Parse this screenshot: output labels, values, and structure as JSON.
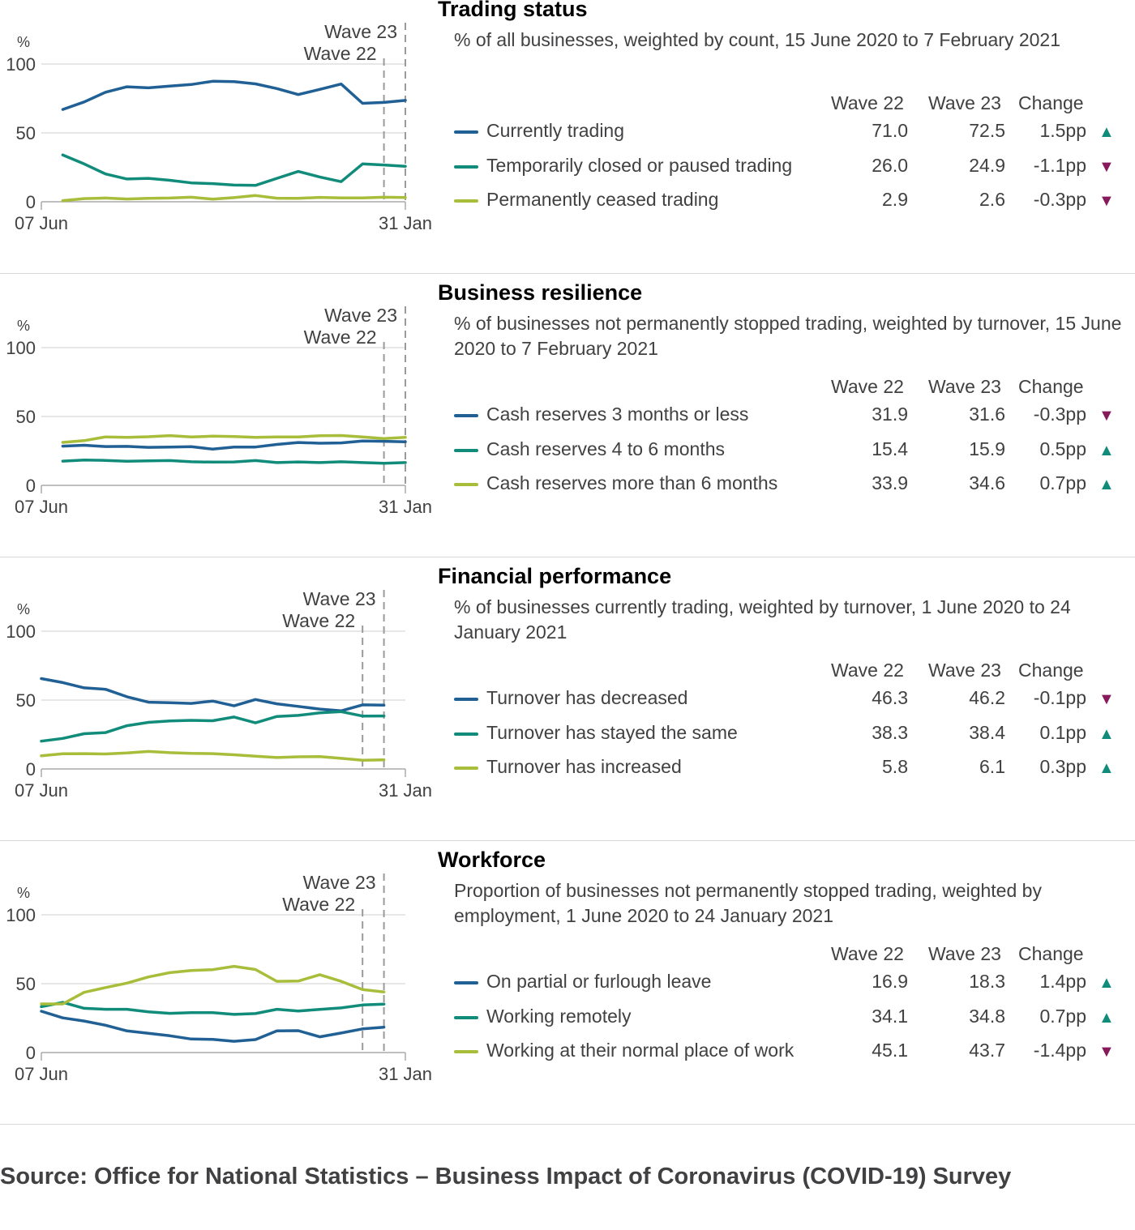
{
  "colors": {
    "blue": "#206095",
    "teal": "#118c7b",
    "lime": "#a8bd3a",
    "up": "#118c7b",
    "down": "#871a5b",
    "grey": "#707070"
  },
  "panels": [
    {
      "title": "Trading status",
      "subtitle": "% of all businesses, weighted by count, 15 June 2020 to 7 February 2021",
      "headers": {
        "w22": "Wave 22",
        "w23": "Wave 23",
        "change": "Change"
      },
      "rows": [
        {
          "label": "Currently trading",
          "w22": "71.0",
          "w23": "72.5",
          "change": "1.5pp",
          "dir": "up",
          "arrow": "▲",
          "color": "#206095"
        },
        {
          "label": "Temporarily closed or paused trading",
          "w22": "26.0",
          "w23": "24.9",
          "change": "-1.1pp",
          "dir": "down",
          "arrow": "▼",
          "color": "#118c7b"
        },
        {
          "label": "Permanently ceased trading",
          "w22": "2.9",
          "w23": "2.6",
          "change": "-0.3pp",
          "dir": "down",
          "arrow": "▼",
          "color": "#a8bd3a"
        }
      ]
    },
    {
      "title": "Business resilience",
      "subtitle": "% of businesses not permanently stopped trading, weighted by turnover, 15 June 2020 to 7 February 2021",
      "headers": {
        "w22": "Wave 22",
        "w23": "Wave 23",
        "change": "Change"
      },
      "rows": [
        {
          "label": "Cash reserves 3 months or less",
          "w22": "31.9",
          "w23": "31.6",
          "change": "-0.3pp",
          "dir": "down",
          "arrow": "▼",
          "color": "#206095"
        },
        {
          "label": "Cash reserves 4 to 6 months",
          "w22": "15.4",
          "w23": "15.9",
          "change": "0.5pp",
          "dir": "up",
          "arrow": "▲",
          "color": "#118c7b"
        },
        {
          "label": "Cash reserves more than 6 months",
          "w22": "33.9",
          "w23": "34.6",
          "change": "0.7pp",
          "dir": "up",
          "arrow": "▲",
          "color": "#a8bd3a"
        }
      ]
    },
    {
      "title": "Financial performance",
      "subtitle": "% of businesses currently trading, weighted by turnover, 1 June 2020 to 24 January 2021",
      "headers": {
        "w22": "Wave 22",
        "w23": "Wave 23",
        "change": "Change"
      },
      "rows": [
        {
          "label": "Turnover has decreased",
          "w22": "46.3",
          "w23": "46.2",
          "change": "-0.1pp",
          "dir": "down",
          "arrow": "▼",
          "color": "#206095"
        },
        {
          "label": "Turnover has stayed the same",
          "w22": "38.3",
          "w23": "38.4",
          "change": "0.1pp",
          "dir": "up",
          "arrow": "▲",
          "color": "#118c7b"
        },
        {
          "label": "Turnover has increased",
          "w22": "5.8",
          "w23": "6.1",
          "change": "0.3pp",
          "dir": "up",
          "arrow": "▲",
          "color": "#a8bd3a"
        }
      ]
    },
    {
      "title": "Workforce",
      "subtitle": "Proportion of businesses not permanently stopped trading, weighted by employment, 1 June 2020 to 24 January 2021",
      "headers": {
        "w22": "Wave 22",
        "w23": "Wave 23",
        "change": "Change"
      },
      "rows": [
        {
          "label": "On partial or furlough leave",
          "w22": "16.9",
          "w23": "18.3",
          "change": "1.4pp",
          "dir": "up",
          "arrow": "▲",
          "color": "#206095"
        },
        {
          "label": "Working remotely",
          "w22": "34.1",
          "w23": "34.8",
          "change": "0.7pp",
          "dir": "up",
          "arrow": "▲",
          "color": "#118c7b"
        },
        {
          "label": "Working at their normal place of work",
          "w22": "45.1",
          "w23": "43.7",
          "change": "-1.4pp",
          "dir": "down",
          "arrow": "▼",
          "color": "#a8bd3a"
        }
      ]
    }
  ],
  "chart_data": [
    {
      "type": "line",
      "unit_label": "%",
      "x_start_label": "07 Jun",
      "x_end_label": "31 Jan",
      "x_range_weeks": [
        0,
        34
      ],
      "ylim": [
        0,
        100
      ],
      "yticks": [
        0,
        50,
        100
      ],
      "wave_markers": [
        {
          "label": "Wave 22",
          "week": 32
        },
        {
          "label": "Wave 23",
          "week": 34
        }
      ],
      "series": [
        {
          "name": "Currently trading",
          "color": "#206095",
          "x": [
            2,
            4,
            6,
            8,
            10,
            12,
            14,
            16,
            18,
            20,
            22,
            24,
            26,
            28,
            30,
            32,
            34
          ],
          "values": [
            67,
            72.5,
            79.5,
            83.5,
            82.7,
            84,
            85.1,
            87.5,
            87.2,
            85.6,
            82.2,
            77.8,
            81.6,
            85.5,
            71.5,
            72.1,
            73.6
          ]
        },
        {
          "name": "Temporarily closed or paused trading",
          "color": "#118c7b",
          "x": [
            2,
            4,
            6,
            8,
            10,
            12,
            14,
            16,
            18,
            20,
            22,
            24,
            26,
            28,
            30,
            32,
            34
          ],
          "values": [
            34,
            27.5,
            20.2,
            16.5,
            17,
            15.6,
            13.7,
            13.2,
            12.1,
            11.9,
            17,
            22,
            18,
            14.6,
            27.5,
            26.7,
            25.7
          ]
        },
        {
          "name": "Permanently ceased trading",
          "color": "#a8bd3a",
          "x": [
            2,
            4,
            6,
            8,
            10,
            12,
            14,
            16,
            18,
            20,
            22,
            24,
            26,
            28,
            30,
            32,
            34
          ],
          "values": [
            0.8,
            2.3,
            2.7,
            2,
            2.5,
            2.7,
            3.3,
            1.9,
            3,
            4.5,
            2.6,
            2.5,
            3.2,
            2.8,
            2.8,
            3.3,
            3.1
          ]
        }
      ]
    },
    {
      "type": "line",
      "unit_label": "%",
      "x_start_label": "07 Jun",
      "x_end_label": "31 Jan",
      "x_range_weeks": [
        0,
        34
      ],
      "ylim": [
        0,
        100
      ],
      "yticks": [
        0,
        50,
        100
      ],
      "wave_markers": [
        {
          "label": "Wave 22",
          "week": 32
        },
        {
          "label": "Wave 23",
          "week": 34
        }
      ],
      "series": [
        {
          "name": "Cash reserves 3 months or less",
          "color": "#206095",
          "x": [
            2,
            4,
            6,
            8,
            10,
            12,
            14,
            16,
            18,
            20,
            22,
            24,
            26,
            28,
            30,
            32,
            34
          ],
          "values": [
            28.5,
            29.1,
            28.2,
            28.3,
            27.6,
            27.8,
            28.1,
            26.3,
            27.8,
            27.8,
            29.7,
            31.1,
            30.6,
            30.8,
            32.2,
            32,
            31.6
          ]
        },
        {
          "name": "Cash reserves 4 to 6 months",
          "color": "#118c7b",
          "x": [
            2,
            4,
            6,
            8,
            10,
            12,
            14,
            16,
            18,
            20,
            22,
            24,
            26,
            28,
            30,
            32,
            34
          ],
          "values": [
            17.6,
            18.4,
            18.1,
            17.5,
            17.8,
            18,
            17.1,
            16.9,
            17,
            18,
            16.5,
            17,
            16.5,
            17.1,
            16.5,
            16,
            16.5
          ]
        },
        {
          "name": "Cash reserves more than 6 months",
          "color": "#a8bd3a",
          "x": [
            2,
            4,
            6,
            8,
            10,
            12,
            14,
            16,
            18,
            20,
            22,
            24,
            26,
            28,
            30,
            32,
            34
          ],
          "values": [
            31.2,
            32.5,
            35.2,
            34.8,
            35.3,
            36.1,
            35.1,
            35.7,
            35.5,
            34.9,
            35.1,
            35.2,
            36,
            36.2,
            35.2,
            34,
            34.8
          ]
        }
      ]
    },
    {
      "type": "line",
      "unit_label": "%",
      "x_start_label": "07 Jun",
      "x_end_label": "31 Jan",
      "x_range_weeks": [
        0,
        34
      ],
      "ylim": [
        0,
        100
      ],
      "yticks": [
        0,
        50,
        100
      ],
      "wave_markers": [
        {
          "label": "Wave 22",
          "week": 30
        },
        {
          "label": "Wave 23",
          "week": 32
        }
      ],
      "series": [
        {
          "name": "Turnover has decreased",
          "color": "#206095",
          "x": [
            0,
            2,
            4,
            6,
            8,
            10,
            12,
            14,
            16,
            18,
            20,
            22,
            24,
            26,
            28,
            30,
            32
          ],
          "values": [
            65.6,
            62.7,
            58.9,
            57.8,
            52.4,
            48.5,
            48.1,
            47.6,
            49.3,
            45.8,
            50.4,
            47.3,
            45.4,
            43.5,
            42.2,
            46.5,
            46.3
          ]
        },
        {
          "name": "Turnover has stayed the same",
          "color": "#118c7b",
          "x": [
            0,
            2,
            4,
            6,
            8,
            10,
            12,
            14,
            16,
            18,
            20,
            22,
            24,
            26,
            28,
            30,
            32
          ],
          "values": [
            20.2,
            22.2,
            25.6,
            26.4,
            31.4,
            33.8,
            34.8,
            35.3,
            35,
            37.7,
            33.5,
            38.1,
            38.9,
            40.7,
            41.6,
            38.4,
            38.5
          ]
        },
        {
          "name": "Turnover has increased",
          "color": "#a8bd3a",
          "x": [
            0,
            2,
            4,
            6,
            8,
            10,
            12,
            14,
            16,
            18,
            20,
            22,
            24,
            26,
            28,
            30,
            32
          ],
          "values": [
            9.6,
            11,
            11.1,
            10.9,
            11.6,
            12.7,
            11.8,
            11.3,
            11.1,
            10.3,
            9.3,
            8.3,
            8.8,
            9,
            7.7,
            6.3,
            6.6
          ]
        }
      ]
    },
    {
      "type": "line",
      "unit_label": "%",
      "x_start_label": "07 Jun",
      "x_end_label": "31 Jan",
      "x_range_weeks": [
        0,
        34
      ],
      "ylim": [
        0,
        100
      ],
      "yticks": [
        0,
        50,
        100
      ],
      "wave_markers": [
        {
          "label": "Wave 22",
          "week": 30
        },
        {
          "label": "Wave 23",
          "week": 32
        }
      ],
      "series": [
        {
          "name": "On partial or furlough leave",
          "color": "#206095",
          "x": [
            0,
            2,
            4,
            6,
            8,
            10,
            12,
            14,
            16,
            18,
            20,
            22,
            24,
            26,
            28,
            30,
            32
          ],
          "values": [
            30,
            25.2,
            22.9,
            19.8,
            15.7,
            14,
            12.2,
            9.8,
            9.6,
            8.2,
            9.4,
            15.7,
            15.9,
            11.4,
            14.2,
            17.2,
            18.4
          ]
        },
        {
          "name": "Working remotely",
          "color": "#118c7b",
          "x": [
            0,
            2,
            4,
            6,
            8,
            10,
            12,
            14,
            16,
            18,
            20,
            22,
            24,
            26,
            28,
            30,
            32
          ],
          "values": [
            33.3,
            36.4,
            32.1,
            31.4,
            31.4,
            29.6,
            28.5,
            29,
            29,
            27.7,
            28.3,
            31.4,
            30.2,
            31.3,
            32.4,
            34.5,
            35.2
          ]
        },
        {
          "name": "Working at their normal place of work",
          "color": "#a8bd3a",
          "x": [
            0,
            2,
            4,
            6,
            8,
            10,
            12,
            14,
            16,
            18,
            20,
            22,
            24,
            26,
            28,
            30,
            32
          ],
          "values": [
            35.3,
            35.3,
            43.7,
            47.2,
            50.4,
            54.9,
            58,
            59.6,
            60.2,
            62.6,
            60.3,
            51.7,
            51.9,
            56.5,
            51.7,
            45.7,
            44
          ]
        }
      ]
    }
  ],
  "source": "Source: Office for National Statistics – Business Impact of Coronavirus (COVID-19) Survey"
}
